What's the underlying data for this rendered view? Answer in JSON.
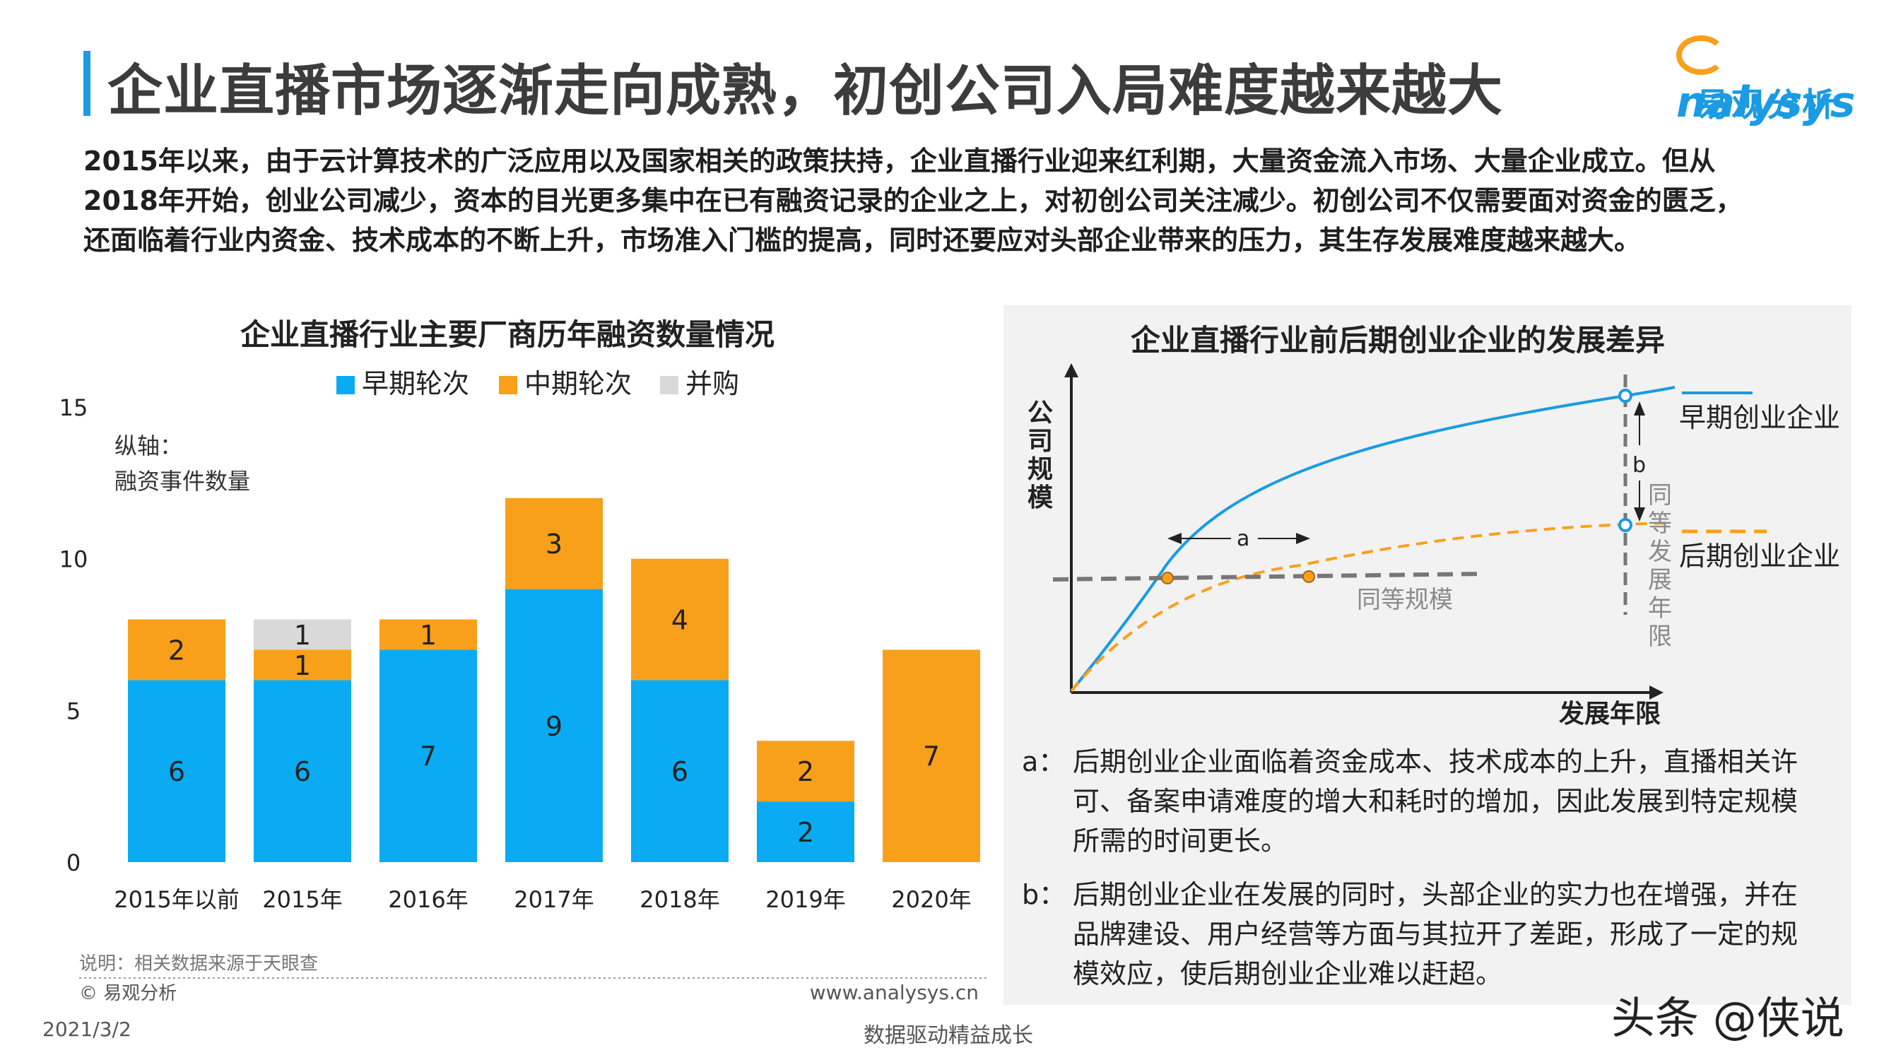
{
  "header": {
    "title": "企业直播市场逐渐走向成熟，初创公司入局难度越来越大",
    "logo_en": "nalysys",
    "logo_cn": "易观分析"
  },
  "intro_lines": [
    "2015年以来，由于云计算技术的广泛应用以及国家相关的政策扶持，企业直播行业迎来红利期，大量资金流入市场、大量企业成立。但从",
    "2018年开始，创业公司减少，资本的目光更多集中在已有融资记录的企业之上，对初创公司关注减少。初创公司不仅需要面对资金的匮乏，",
    "还面临着行业内资金、技术成本的不断上升，市场准入门槛的提高，同时还要应对头部企业带来的压力，其生存发展难度越来越大。"
  ],
  "left_chart": {
    "axis_note_1": "纵轴：",
    "axis_note_2": "融资事件数量",
    "source_note": "说明：相关数据来源于天眼查",
    "copyright": "© 易观分析",
    "website": "www.analysys.cn"
  },
  "chart_data": [
    {
      "type": "bar",
      "stacked": true,
      "title": "企业直播行业主要厂商历年融资数量情况",
      "categories": [
        "2015年以前",
        "2015年",
        "2016年",
        "2017年",
        "2018年",
        "2019年",
        "2020年"
      ],
      "series": [
        {
          "name": "早期轮次",
          "color": "#0aabf2",
          "values": [
            6,
            6,
            7,
            9,
            6,
            2,
            0
          ]
        },
        {
          "name": "中期轮次",
          "color": "#f9a01b",
          "values": [
            2,
            1,
            1,
            3,
            4,
            2,
            7
          ]
        },
        {
          "name": "并购",
          "color": "#d9d9d9",
          "values": [
            0,
            1,
            0,
            0,
            0,
            0,
            0
          ]
        }
      ],
      "ylim": [
        0,
        15
      ],
      "yticks": [
        0,
        5,
        10,
        15
      ],
      "legend": "top",
      "grid": false
    },
    {
      "type": "line",
      "title": "企业直播行业前后期创业企业的发展差异",
      "xlabel": "发展年限",
      "ylabel": "公司规模",
      "series": [
        {
          "name": "早期创业企业",
          "color": "#1a9be3",
          "style": "solid"
        },
        {
          "name": "后期创业企业",
          "color": "#f9a01b",
          "style": "dashed"
        }
      ],
      "annotations": [
        "a",
        "b",
        "同等规模",
        "同等发展年限"
      ]
    }
  ],
  "right_chart": {
    "notes": [
      {
        "key": "a：",
        "lines": [
          "后期创业企业面临着资金成本、技术成本的上升，直播相关许",
          "可、备案申请难度的增大和耗时的增加，因此发展到特定规模",
          "所需的时间更长。"
        ]
      },
      {
        "key": "b：",
        "lines": [
          "后期创业企业在发展的同时，头部企业的实力也在增强，并在",
          "品牌建设、用户经营等方面与其拉开了差距，形成了一定的规",
          "模效应，使后期创业企业难以赶超。"
        ]
      }
    ]
  },
  "footer": {
    "date": "2021/3/2",
    "slogan": "数据驱动精益成长",
    "watermark": "头条 @侠说"
  }
}
